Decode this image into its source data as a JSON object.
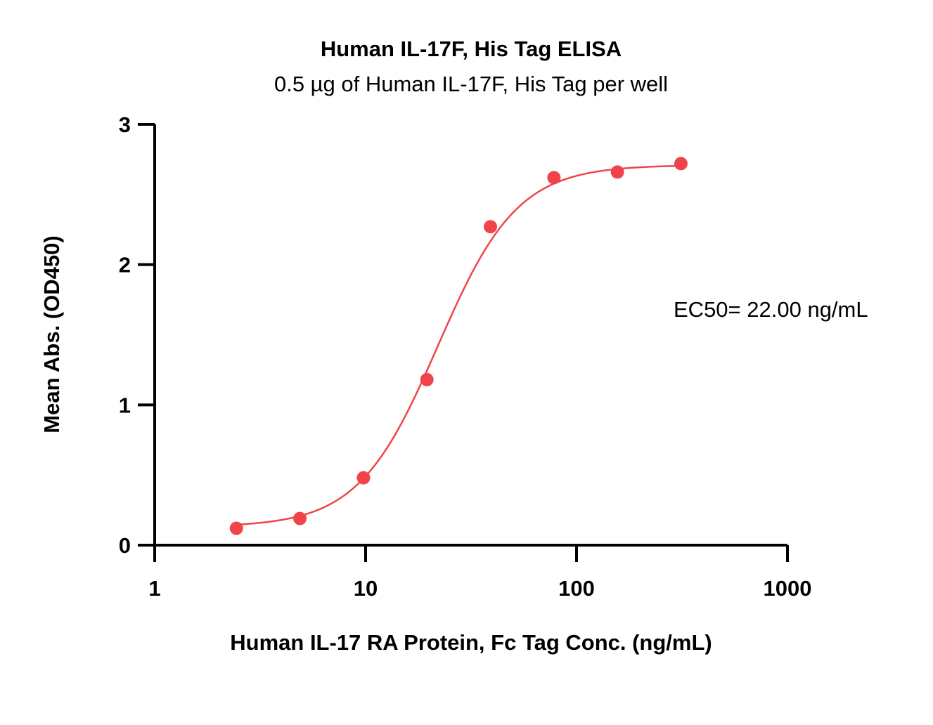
{
  "chart_data": {
    "type": "scatter",
    "title": "Human IL-17F, His Tag ELISA",
    "subtitle": "0.5 µg of Human IL-17F, His Tag per well",
    "xlabel": "Human IL-17 RA Protein, Fc Tag Conc. (ng/mL)",
    "ylabel": "Mean Abs. (OD450)",
    "x_scale": "log",
    "xlim": [
      1,
      1000
    ],
    "ylim": [
      0,
      3
    ],
    "x_ticks": [
      "1",
      "10",
      "100",
      "1000"
    ],
    "y_ticks": [
      "0",
      "1",
      "2",
      "3"
    ],
    "grid": false,
    "series": [
      {
        "color": "#f0444a",
        "x": [
          2.44,
          4.88,
          9.77,
          19.53,
          39.06,
          78.13,
          156.25,
          312.5
        ],
        "y": [
          0.12,
          0.19,
          0.48,
          1.18,
          2.27,
          2.62,
          2.66,
          2.72
        ]
      }
    ],
    "fit_curve": {
      "model": "4PL",
      "bottom": 0.13,
      "top": 2.71,
      "ec50": 22.0,
      "hill": 2.3,
      "color": "#f0444a"
    },
    "annotations": [
      {
        "text": "EC50= 22.00 ng/mL"
      }
    ]
  }
}
